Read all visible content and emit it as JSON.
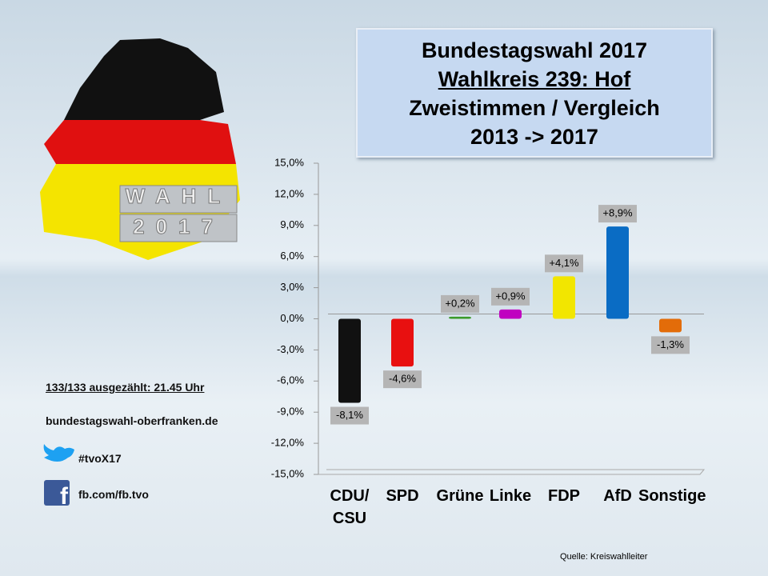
{
  "header": {
    "title_lines": [
      "Bundestagswahl 2017",
      "Wahlkreis 239: Hof",
      "Zweistimmen / Vergleich",
      "2013 -> 2017"
    ]
  },
  "logo": {
    "top": "WAHL",
    "bottom": "2017"
  },
  "info": {
    "status": "133/133 ausgezählt: 21.45 Uhr",
    "website": "bundestagswahl-oberfranken.de",
    "twitter": "#tvoX17",
    "facebook": "fb.com/fb.tvo"
  },
  "source": "Quelle: Kreiswahlleiter",
  "chart_data": {
    "type": "bar",
    "categories": [
      "CDU/\nCSU",
      "SPD",
      "Grüne",
      "Linke",
      "FDP",
      "AfD",
      "Sonstige"
    ],
    "values": [
      -8.1,
      -4.6,
      0.2,
      0.9,
      4.1,
      8.9,
      -1.3
    ],
    "value_labels": [
      "-8,1%",
      "-4,6%",
      "+0,2%",
      "+0,9%",
      "+4,1%",
      "+8,9%",
      "-1,3%"
    ],
    "colors": [
      "#111111",
      "#e81010",
      "#3a9a2a",
      "#c000c0",
      "#f2e600",
      "#0a6cc4",
      "#e36c09"
    ],
    "ylim": [
      -15,
      15
    ],
    "yticks": [
      {
        "value": -15,
        "label": "-15,0%"
      },
      {
        "value": -12,
        "label": "-12,0%"
      },
      {
        "value": -9,
        "label": "-9,0%"
      },
      {
        "value": -6,
        "label": "-6,0%"
      },
      {
        "value": -3,
        "label": "-3,0%"
      },
      {
        "value": 0,
        "label": "0,0%"
      },
      {
        "value": 3,
        "label": "3,0%"
      },
      {
        "value": 6,
        "label": "6,0%"
      },
      {
        "value": 9,
        "label": "9,0%"
      },
      {
        "value": 12,
        "label": "12,0%"
      },
      {
        "value": 15,
        "label": "15,0%"
      }
    ]
  }
}
